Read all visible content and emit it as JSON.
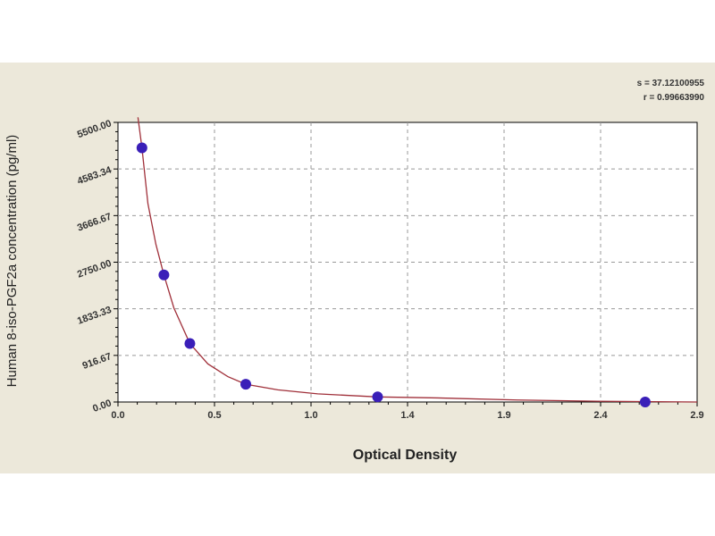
{
  "chart_data": {
    "type": "scatter",
    "xlabel": "Optical Density",
    "ylabel": "Human 8-iso-PGF2a concentration (pg/ml)",
    "xlim": [
      0,
      2.9
    ],
    "ylim": [
      0,
      5500
    ],
    "xticks": [
      "0.0",
      "0.5",
      "1.0",
      "1.4",
      "1.9",
      "2.4",
      "2.9"
    ],
    "yticks": [
      "0.00",
      "916.67",
      "1833.33",
      "2750.00",
      "3666.67",
      "4583.34",
      "5500.00"
    ],
    "grid": true,
    "points": [
      {
        "x": 0.12,
        "y": 5000
      },
      {
        "x": 0.23,
        "y": 2500
      },
      {
        "x": 0.36,
        "y": 1150
      },
      {
        "x": 0.64,
        "y": 350
      },
      {
        "x": 1.3,
        "y": 100
      },
      {
        "x": 2.64,
        "y": 0
      }
    ],
    "fit_curve": [
      {
        "x": 0.1,
        "y": 5600
      },
      {
        "x": 0.12,
        "y": 5000
      },
      {
        "x": 0.15,
        "y": 3900
      },
      {
        "x": 0.19,
        "y": 3100
      },
      {
        "x": 0.23,
        "y": 2500
      },
      {
        "x": 0.28,
        "y": 1850
      },
      {
        "x": 0.36,
        "y": 1150
      },
      {
        "x": 0.45,
        "y": 750
      },
      {
        "x": 0.55,
        "y": 500
      },
      {
        "x": 0.64,
        "y": 350
      },
      {
        "x": 0.8,
        "y": 240
      },
      {
        "x": 1.0,
        "y": 160
      },
      {
        "x": 1.3,
        "y": 100
      },
      {
        "x": 1.6,
        "y": 80
      },
      {
        "x": 2.0,
        "y": 40
      },
      {
        "x": 2.4,
        "y": 15
      },
      {
        "x": 2.9,
        "y": 0
      }
    ],
    "colors": {
      "points": "#3a1fb8",
      "curve": "#a0303a",
      "grid": "#999999"
    },
    "annotations": {
      "s": "s = 37.12100955",
      "r": "r = 0.99663990"
    }
  }
}
